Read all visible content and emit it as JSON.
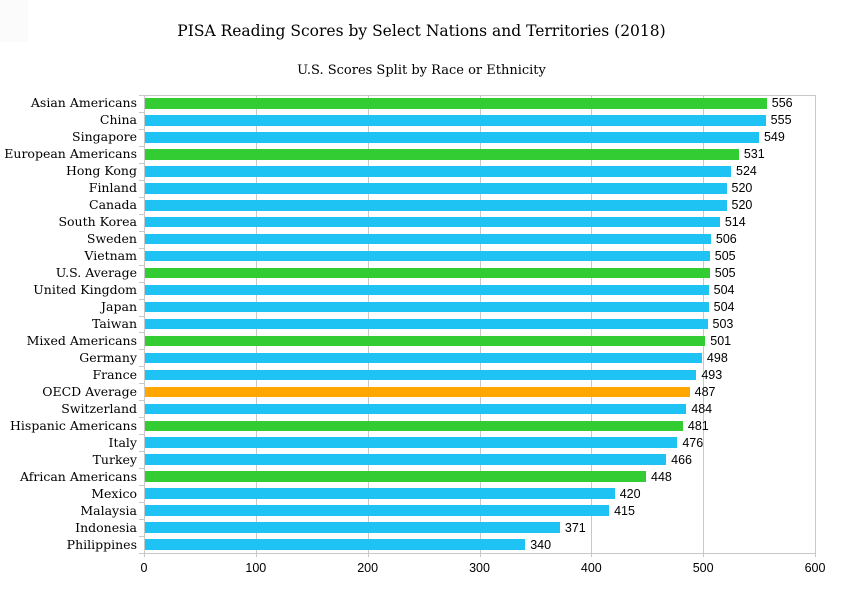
{
  "chart_data": {
    "type": "bar",
    "orientation": "horizontal",
    "title": "PISA Reading Scores by Select Nations and Territories (2018)",
    "subtitle": "U.S. Scores Split by Race or Ethnicity",
    "xlabel": "",
    "ylabel": "",
    "xlim": [
      0,
      600
    ],
    "x_ticks": [
      0,
      100,
      200,
      300,
      400,
      500,
      600
    ],
    "grid": true,
    "legend": "none",
    "value_labels": "shown at bar ends",
    "bars": [
      {
        "label": "Asian Americans",
        "value": 556,
        "group": "us_race_group"
      },
      {
        "label": "China",
        "value": 555,
        "group": "nation"
      },
      {
        "label": "Singapore",
        "value": 549,
        "group": "nation"
      },
      {
        "label": "European Americans",
        "value": 531,
        "group": "us_race_group"
      },
      {
        "label": "Hong Kong",
        "value": 524,
        "group": "nation"
      },
      {
        "label": "Finland",
        "value": 520,
        "group": "nation"
      },
      {
        "label": "Canada",
        "value": 520,
        "group": "nation"
      },
      {
        "label": "South Korea",
        "value": 514,
        "group": "nation"
      },
      {
        "label": "Sweden",
        "value": 506,
        "group": "nation"
      },
      {
        "label": "Vietnam",
        "value": 505,
        "group": "nation"
      },
      {
        "label": "U.S. Average",
        "value": 505,
        "group": "us_race_group"
      },
      {
        "label": "United Kingdom",
        "value": 504,
        "group": "nation"
      },
      {
        "label": "Japan",
        "value": 504,
        "group": "nation"
      },
      {
        "label": "Taiwan",
        "value": 503,
        "group": "nation"
      },
      {
        "label": "Mixed Americans",
        "value": 501,
        "group": "us_race_group"
      },
      {
        "label": "Germany",
        "value": 498,
        "group": "nation"
      },
      {
        "label": "France",
        "value": 493,
        "group": "nation"
      },
      {
        "label": "OECD Average",
        "value": 487,
        "group": "oecd_average"
      },
      {
        "label": "Switzerland",
        "value": 484,
        "group": "nation"
      },
      {
        "label": "Hispanic Americans",
        "value": 481,
        "group": "us_race_group"
      },
      {
        "label": "Italy",
        "value": 476,
        "group": "nation"
      },
      {
        "label": "Turkey",
        "value": 466,
        "group": "nation"
      },
      {
        "label": "African Americans",
        "value": 448,
        "group": "us_race_group"
      },
      {
        "label": "Mexico",
        "value": 420,
        "group": "nation"
      },
      {
        "label": "Malaysia",
        "value": 415,
        "group": "nation"
      },
      {
        "label": "Indonesia",
        "value": 371,
        "group": "nation"
      },
      {
        "label": "Philippines",
        "value": 340,
        "group": "nation"
      }
    ]
  },
  "colors": {
    "nation": "#1FC3F3",
    "us_race_group": "#33CC33",
    "oecd_average": "#FFA600",
    "grid": "#C8C8C8",
    "text": "#000000",
    "background": "#FFFFFF"
  }
}
